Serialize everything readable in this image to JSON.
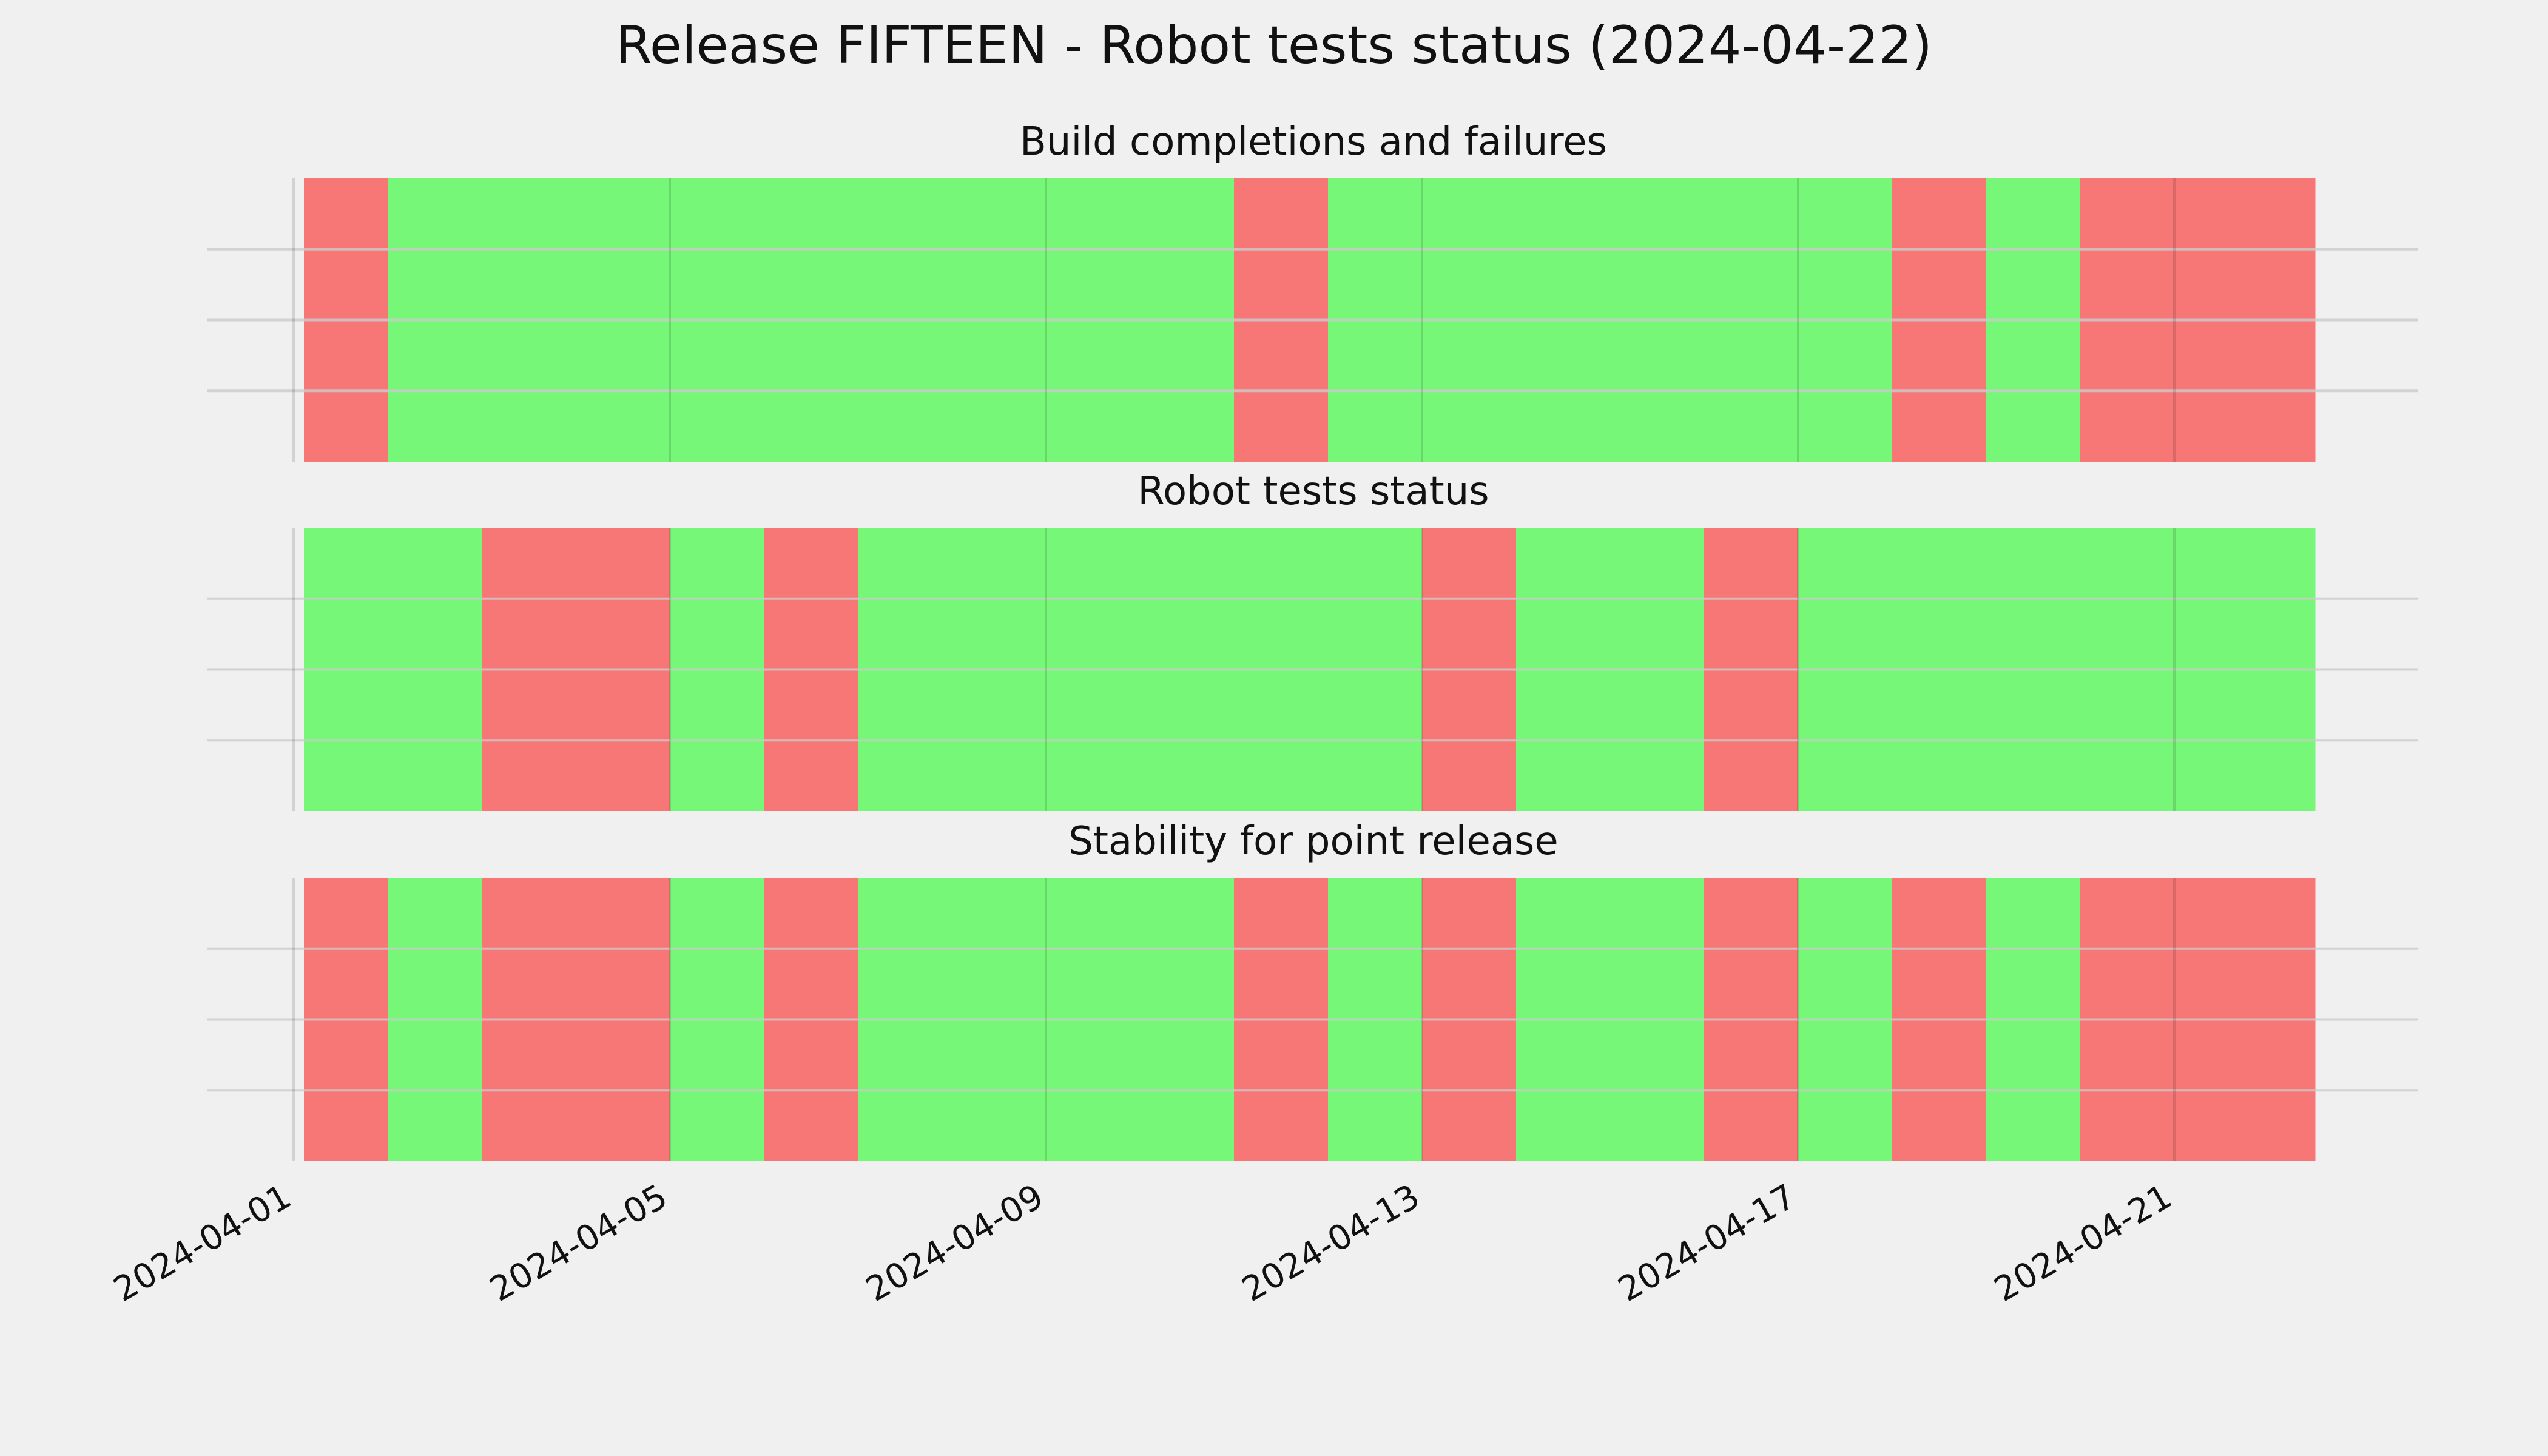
{
  "title": "Release FIFTEEN - Robot tests status (2024-04-22)",
  "colors": {
    "background": "#f0f0f0",
    "pass": "#77f777",
    "fail": "#f77777",
    "grid": "#cbcbcb",
    "text": "#111111"
  },
  "chart_data": [
    {
      "type": "bar",
      "subtype": "status-timeline",
      "title": "Build completions and failures",
      "xlim": [
        "2024-04-01",
        "2024-04-23"
      ],
      "x_ticks": [
        "2024-04-01",
        "2024-04-05",
        "2024-04-09",
        "2024-04-13",
        "2024-04-17",
        "2024-04-21"
      ],
      "grid": true,
      "segments": [
        {
          "start": "2024-04-01",
          "end": "2024-04-02",
          "status": "fail"
        },
        {
          "start": "2024-04-02",
          "end": "2024-04-11",
          "status": "pass"
        },
        {
          "start": "2024-04-11",
          "end": "2024-04-12",
          "status": "fail"
        },
        {
          "start": "2024-04-12",
          "end": "2024-04-17",
          "status": "pass"
        },
        {
          "start": "2024-04-17",
          "end": "2024-04-18",
          "status": "pass"
        },
        {
          "start": "2024-04-18",
          "end": "2024-04-19",
          "status": "fail"
        },
        {
          "start": "2024-04-19",
          "end": "2024-04-20",
          "status": "pass"
        },
        {
          "start": "2024-04-20",
          "end": "2024-04-21",
          "status": "fail"
        },
        {
          "start": "2024-04-21",
          "end": "2024-04-22.5",
          "status": "fail"
        }
      ]
    },
    {
      "type": "bar",
      "subtype": "status-timeline",
      "title": "Robot tests status",
      "xlim": [
        "2024-04-01",
        "2024-04-23"
      ],
      "x_ticks": [
        "2024-04-01",
        "2024-04-05",
        "2024-04-09",
        "2024-04-13",
        "2024-04-17",
        "2024-04-21"
      ],
      "grid": true,
      "segments": [
        {
          "start": "2024-04-01",
          "end": "2024-04-03",
          "status": "pass"
        },
        {
          "start": "2024-04-03",
          "end": "2024-04-05",
          "status": "fail"
        },
        {
          "start": "2024-04-05",
          "end": "2024-04-06",
          "status": "pass"
        },
        {
          "start": "2024-04-06",
          "end": "2024-04-07",
          "status": "fail"
        },
        {
          "start": "2024-04-07",
          "end": "2024-04-13",
          "status": "pass"
        },
        {
          "start": "2024-04-13",
          "end": "2024-04-14",
          "status": "fail"
        },
        {
          "start": "2024-04-14",
          "end": "2024-04-16",
          "status": "pass"
        },
        {
          "start": "2024-04-16",
          "end": "2024-04-17",
          "status": "fail"
        },
        {
          "start": "2024-04-17",
          "end": "2024-04-22.5",
          "status": "pass"
        }
      ]
    },
    {
      "type": "bar",
      "subtype": "status-timeline",
      "title": "Stability for point release",
      "xlim": [
        "2024-04-01",
        "2024-04-23"
      ],
      "x_ticks": [
        "2024-04-01",
        "2024-04-05",
        "2024-04-09",
        "2024-04-13",
        "2024-04-17",
        "2024-04-21"
      ],
      "x_tick_labels": [
        "2024-04-01",
        "2024-04-05",
        "2024-04-09",
        "2024-04-13",
        "2024-04-17",
        "2024-04-21"
      ],
      "grid": true,
      "segments": [
        {
          "start": "2024-04-01",
          "end": "2024-04-02",
          "status": "fail"
        },
        {
          "start": "2024-04-02",
          "end": "2024-04-03",
          "status": "pass"
        },
        {
          "start": "2024-04-03",
          "end": "2024-04-05",
          "status": "fail"
        },
        {
          "start": "2024-04-05",
          "end": "2024-04-06",
          "status": "pass"
        },
        {
          "start": "2024-04-06",
          "end": "2024-04-07",
          "status": "fail"
        },
        {
          "start": "2024-04-07",
          "end": "2024-04-11",
          "status": "pass"
        },
        {
          "start": "2024-04-11",
          "end": "2024-04-12",
          "status": "fail"
        },
        {
          "start": "2024-04-12",
          "end": "2024-04-13",
          "status": "pass"
        },
        {
          "start": "2024-04-13",
          "end": "2024-04-14",
          "status": "fail"
        },
        {
          "start": "2024-04-14",
          "end": "2024-04-16",
          "status": "pass"
        },
        {
          "start": "2024-04-16",
          "end": "2024-04-17",
          "status": "fail"
        },
        {
          "start": "2024-04-17",
          "end": "2024-04-18",
          "status": "pass"
        },
        {
          "start": "2024-04-18",
          "end": "2024-04-19",
          "status": "fail"
        },
        {
          "start": "2024-04-19",
          "end": "2024-04-20",
          "status": "pass"
        },
        {
          "start": "2024-04-20",
          "end": "2024-04-21",
          "status": "fail"
        },
        {
          "start": "2024-04-21",
          "end": "2024-04-22.5",
          "status": "fail"
        }
      ]
    }
  ]
}
